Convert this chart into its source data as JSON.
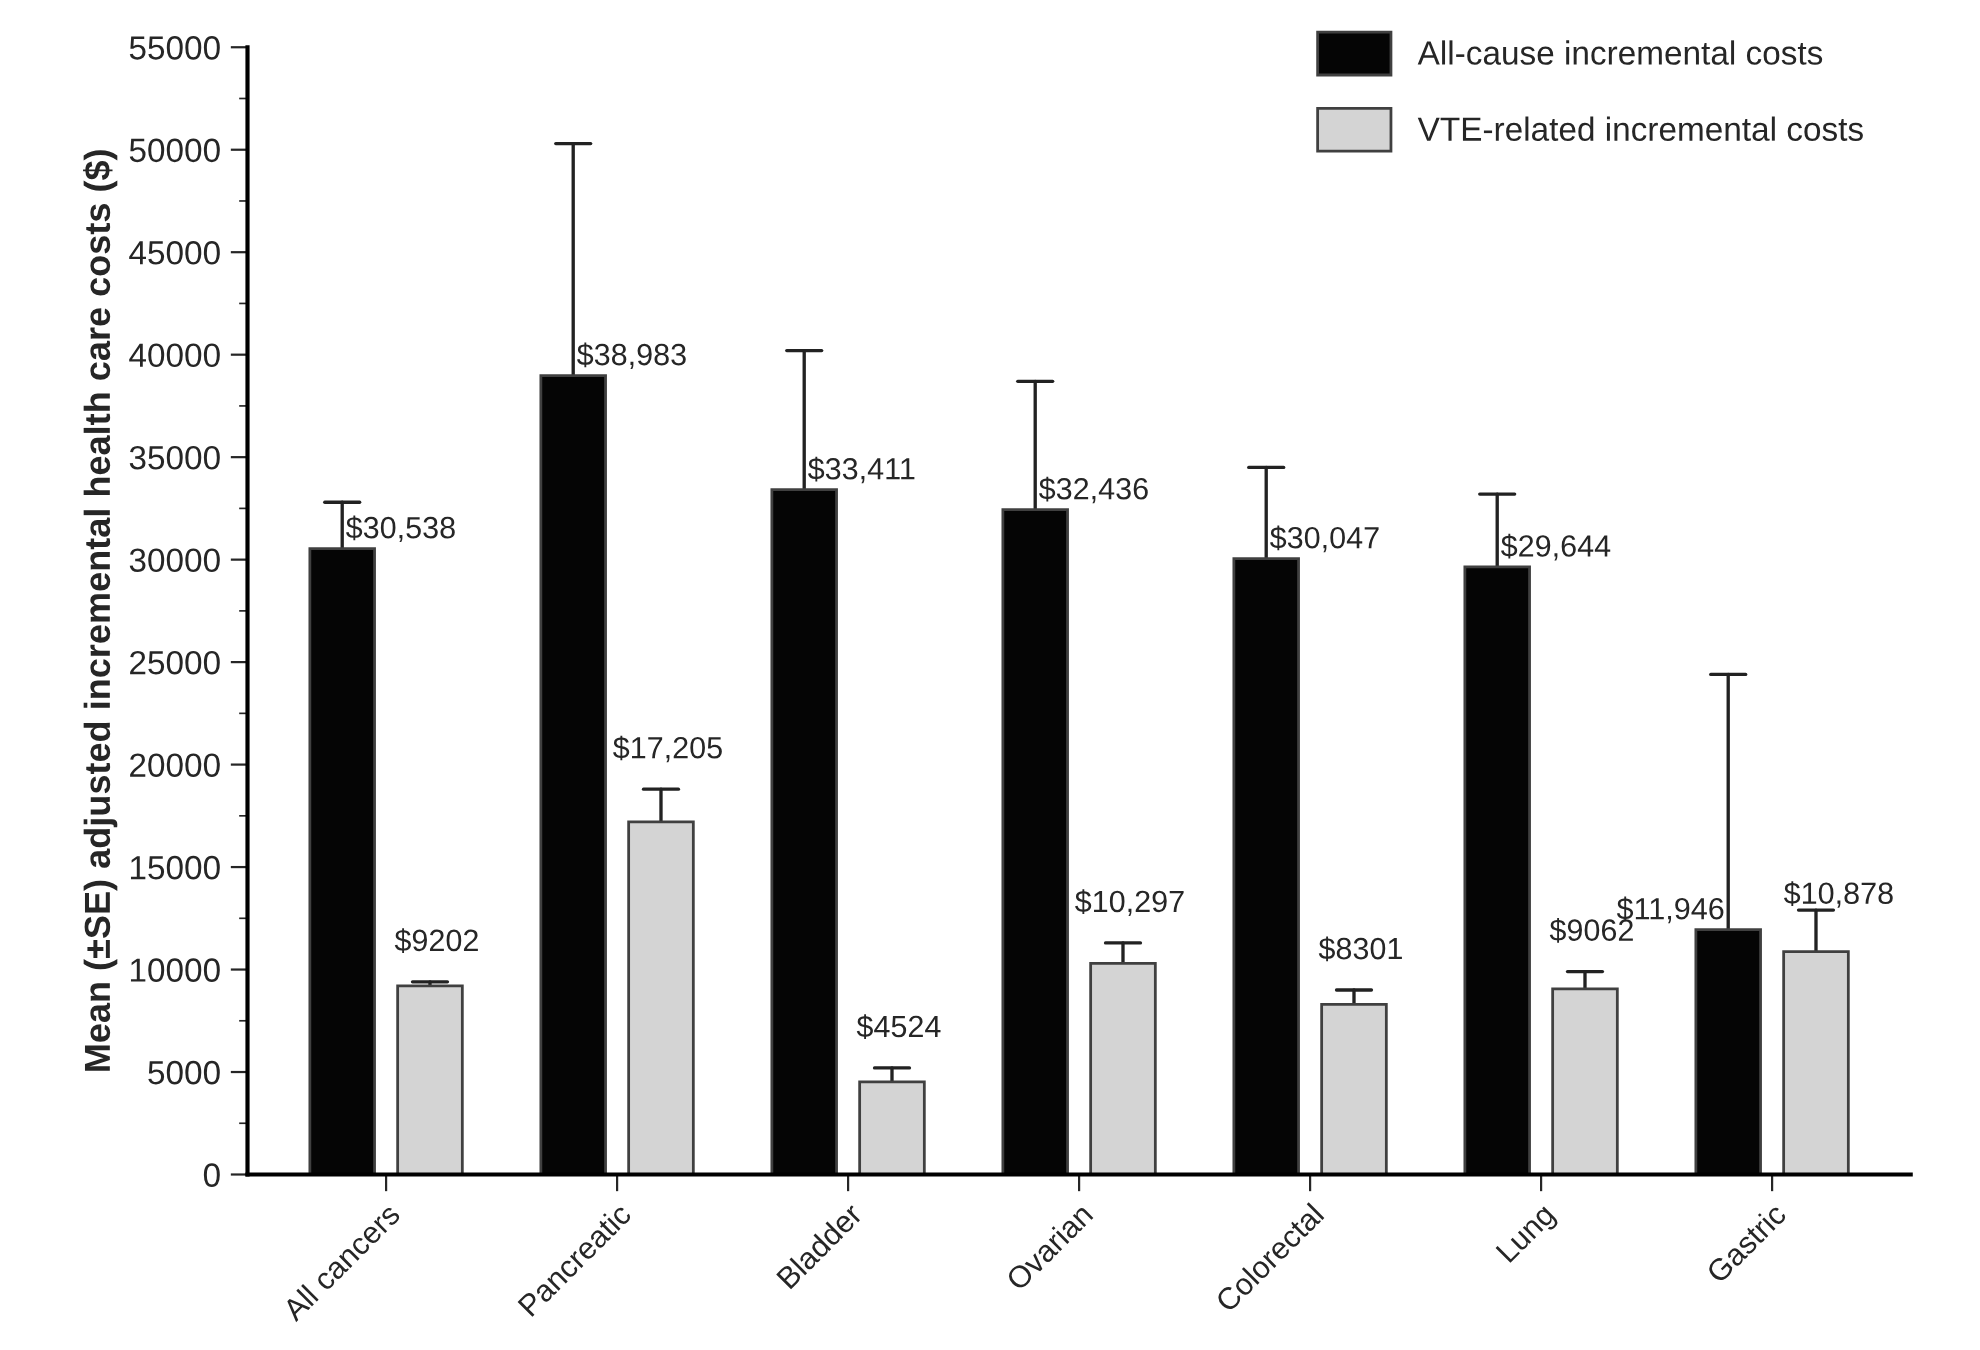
{
  "chart_data": {
    "type": "bar",
    "categories": [
      "All cancers",
      "Pancreatic",
      "Bladder",
      "Ovarian",
      "Colorectal",
      "Lung",
      "Gastric"
    ],
    "ylabel": "Mean (±SE) adjusted incremental health care costs ($)",
    "ylim": [
      0,
      55000
    ],
    "yticks": [
      0,
      5000,
      10000,
      15000,
      20000,
      25000,
      30000,
      35000,
      40000,
      45000,
      50000,
      55000
    ],
    "grid": false,
    "legend": "top right",
    "series": [
      {
        "name": "All-cause incremental costs",
        "color": "#050505",
        "values": [
          30538,
          38983,
          33411,
          32436,
          30047,
          29644,
          11946
        ],
        "errors": [
          [
            30538,
            32800
          ],
          [
            38983,
            50300
          ],
          [
            33411,
            40200
          ],
          [
            32436,
            38700
          ],
          [
            30047,
            34500
          ],
          [
            29644,
            33200
          ],
          [
            11946,
            24400
          ]
        ],
        "value_labels": [
          "$30,538",
          "$38,983",
          "$33,411",
          "$32,436",
          "$30,047",
          "$29,644",
          "$11,946"
        ]
      },
      {
        "name": "VTE-related incremental costs",
        "color": "#d4d4d4",
        "values": [
          9202,
          17205,
          4524,
          10297,
          8301,
          9062,
          10878
        ],
        "errors": [
          [
            9202,
            9400
          ],
          [
            17205,
            18800
          ],
          [
            4524,
            5200
          ],
          [
            10297,
            11300
          ],
          [
            8301,
            9000
          ],
          [
            9062,
            9900
          ],
          [
            10878,
            12900
          ]
        ],
        "value_labels": [
          "$9202",
          "$17,205",
          "$4524",
          "$10,297",
          "$8301",
          "$9062",
          "$10,878"
        ]
      }
    ]
  }
}
